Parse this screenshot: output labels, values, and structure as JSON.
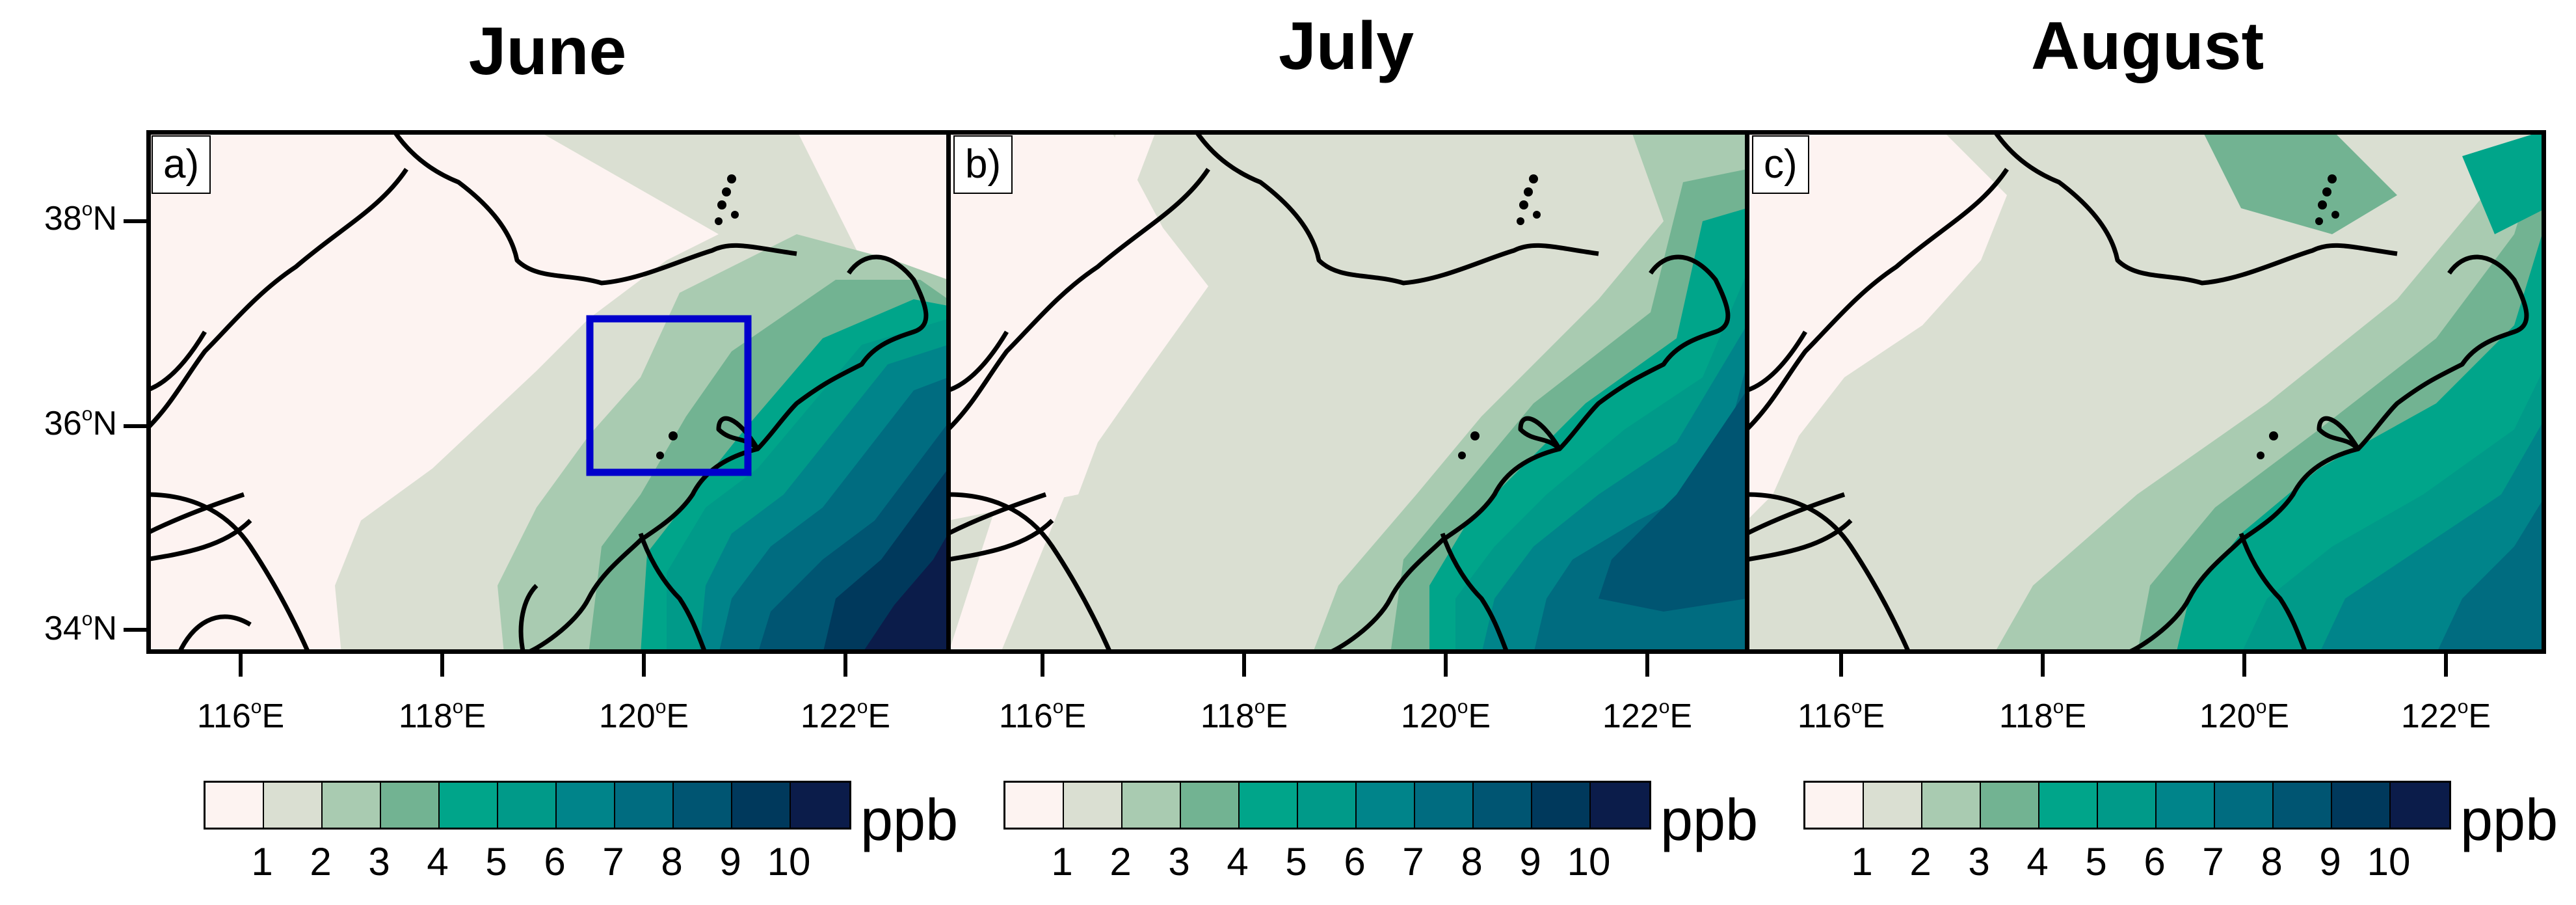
{
  "panels": [
    {
      "title": "June",
      "label": "a)"
    },
    {
      "title": "July",
      "label": "b)"
    },
    {
      "title": "August",
      "label": "c)"
    }
  ],
  "lat_labels": [
    "38",
    "36",
    "34"
  ],
  "lat_suffix": "N",
  "lon_labels": [
    "116",
    "118",
    "120",
    "122"
  ],
  "lon_suffix": "E",
  "degree": "o",
  "colorbar": {
    "colors": [
      "#fdf3f1",
      "#dadfd2",
      "#a9cbb1",
      "#72b392",
      "#00a58a",
      "#009a89",
      "#00848a",
      "#006c80",
      "#005572",
      "#00395c",
      "#0b1c4a"
    ],
    "ticks": [
      "1",
      "2",
      "3",
      "4",
      "5",
      "6",
      "7",
      "8",
      "9",
      "10"
    ],
    "unit": "ppb"
  },
  "box": {
    "lon_range": [
      119.5,
      121.0
    ],
    "lat_range": [
      35.5,
      37.0
    ],
    "color": "#0000cc"
  }
}
